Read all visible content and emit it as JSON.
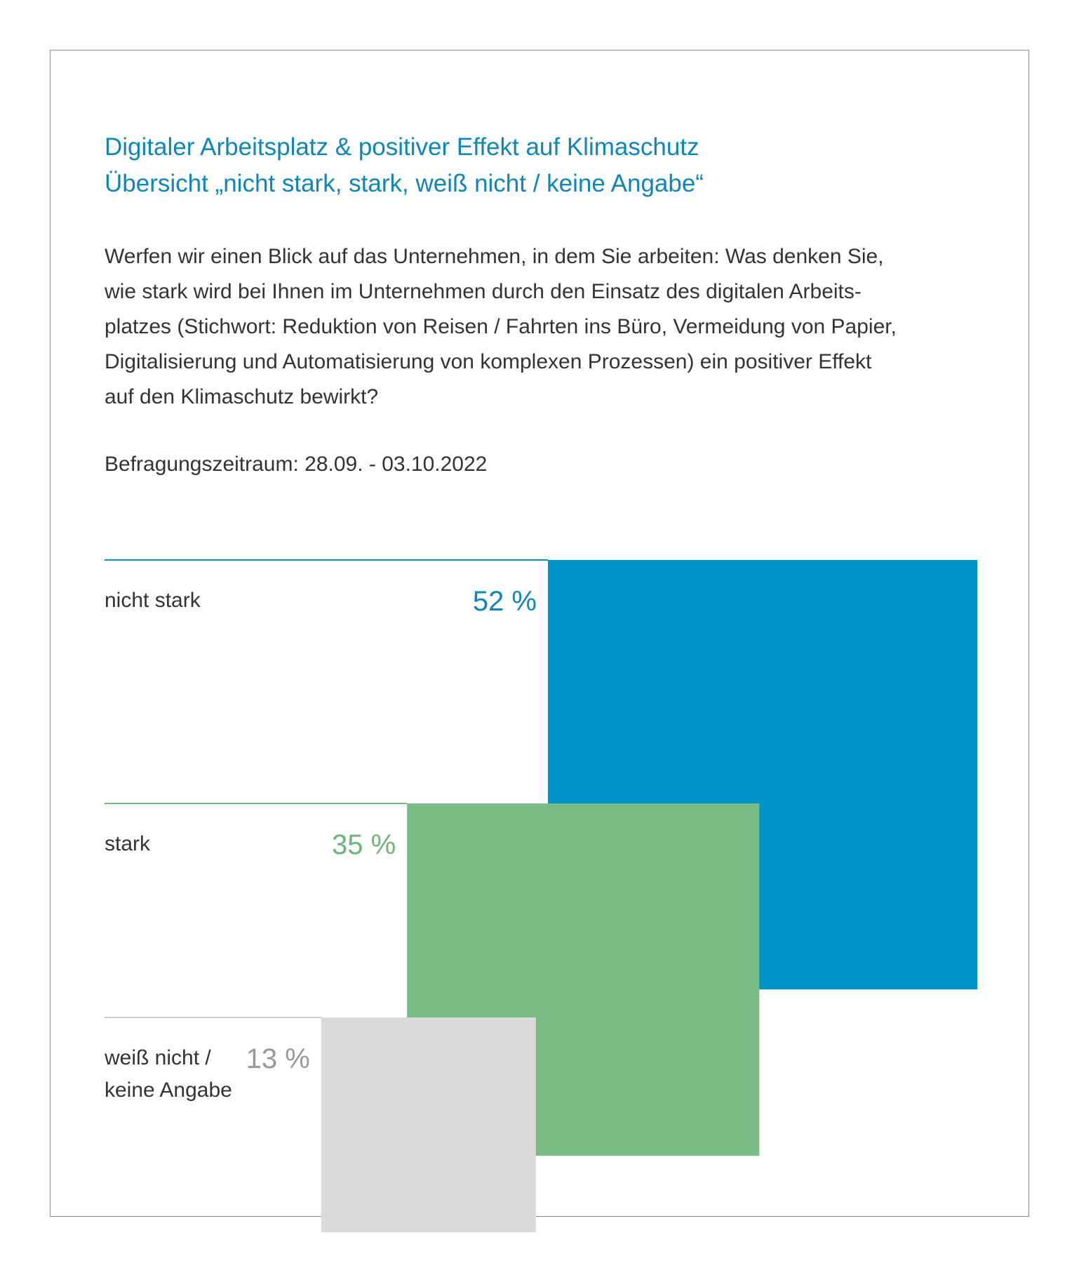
{
  "title": {
    "line1": "Digitaler Arbeitsplatz & positiver Effekt auf Klimaschutz",
    "line2": "Übersicht „nicht stark, stark, weiß nicht / keine Angabe“"
  },
  "question": {
    "lines": [
      "Werfen wir einen Blick auf das Unternehmen, in dem Sie arbeiten: Was denken Sie,",
      "wie stark wird bei Ihnen im Unternehmen durch den Einsatz des digitalen Arbeits-",
      "platzes (Stichwort: Reduktion von Reisen / Fahrten ins Büro, Vermeidung von Papier,",
      "Digitalisierung und Automatisierung von komplexen Prozessen) ein positiver Effekt",
      "auf den Klimaschutz bewirkt?"
    ]
  },
  "period": "Befragungszeitraum: 28.09. - 03.10.2022",
  "chart_data": {
    "type": "bar",
    "categories": [
      "nicht stark",
      "stark",
      "weiß nicht / keine Angabe"
    ],
    "category_lines": [
      [
        "nicht stark"
      ],
      [
        "stark"
      ],
      [
        "weiß nicht /",
        "keine Angabe"
      ]
    ],
    "values": [
      52,
      35,
      13
    ],
    "value_labels": [
      "52 %",
      "35 %",
      "13 %"
    ],
    "unit": "%",
    "colors": [
      "#0093c8",
      "#78bb85",
      "#dadada"
    ],
    "label_colors": [
      "#0e86b8",
      "#6db47b",
      "#999999"
    ]
  }
}
